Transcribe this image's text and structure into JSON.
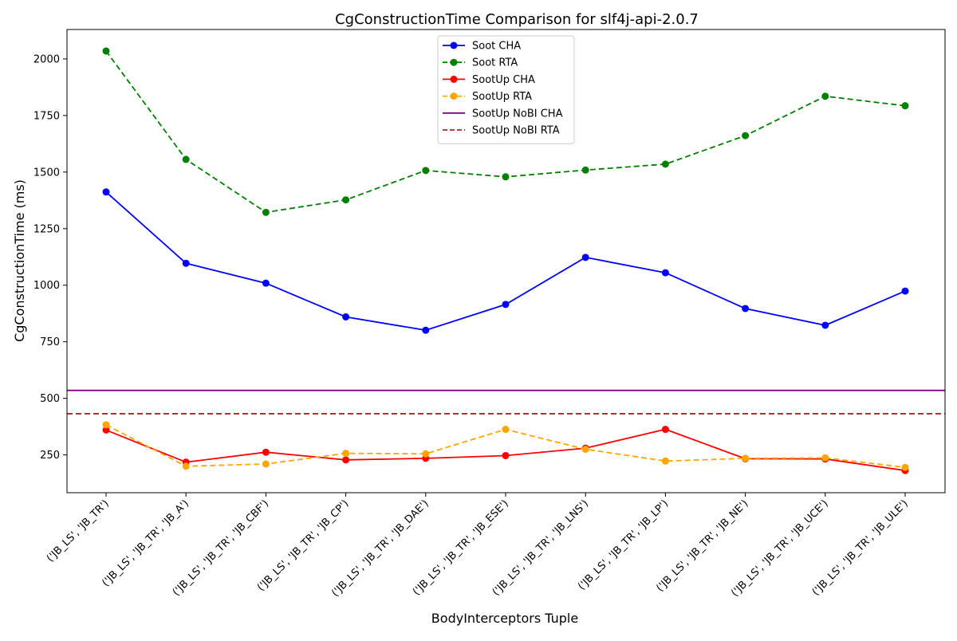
{
  "chart_data": {
    "type": "line",
    "title": "CgConstructionTime Comparison for slf4j-api-2.0.7",
    "xlabel": "BodyInterceptors Tuple",
    "ylabel": "CgConstructionTime (ms)",
    "categories": [
      "('JB_LS', 'JB_TR')",
      "('JB_LS', 'JB_TR', 'JB_A')",
      "('JB_LS', 'JB_TR', 'JB_CBF')",
      "('JB_LS', 'JB_TR', 'JB_CP')",
      "('JB_LS', 'JB_TR', 'JB_DAE')",
      "('JB_LS', 'JB_TR', 'JB_ESE')",
      "('JB_LS', 'JB_TR', 'JB_LNS')",
      "('JB_LS', 'JB_TR', 'JB_LP')",
      "('JB_LS', 'JB_TR', 'JB_NE')",
      "('JB_LS', 'JB_TR', 'JB_UCE')",
      "('JB_LS', 'JB_TR', 'JB_ULE')"
    ],
    "ylim": [
      83,
      2130
    ],
    "yticks": [
      250,
      500,
      750,
      1000,
      1250,
      1500,
      1750,
      2000
    ],
    "grid": false,
    "legend_position": "top-center",
    "series": [
      {
        "name": "Soot CHA",
        "color": "#0000ff",
        "dash": "solid",
        "markers": true,
        "values": [
          1412,
          1097,
          1009,
          860,
          801,
          915,
          1123,
          1055,
          897,
          823,
          974
        ]
      },
      {
        "name": "Soot RTA",
        "color": "#008000",
        "dash": "dashed",
        "markers": true,
        "values": [
          2035,
          1556,
          1322,
          1377,
          1507,
          1479,
          1509,
          1535,
          1661,
          1835,
          1793
        ]
      },
      {
        "name": "SootUp CHA",
        "color": "#ff0000",
        "dash": "solid",
        "markers": true,
        "values": [
          360,
          218,
          262,
          228,
          235,
          247,
          280,
          363,
          233,
          232,
          181
        ]
      },
      {
        "name": "SootUp RTA",
        "color": "#ffa500",
        "dash": "dashed",
        "markers": true,
        "values": [
          383,
          200,
          210,
          257,
          255,
          363,
          275,
          223,
          235,
          237,
          195
        ]
      },
      {
        "name": "SootUp NoBI CHA",
        "color": "#800080",
        "dash": "solid",
        "markers": false,
        "hline": 535
      },
      {
        "name": "SootUp NoBI RTA",
        "color": "#b22222",
        "dash": "dashed",
        "markers": false,
        "hline": 432
      }
    ]
  }
}
